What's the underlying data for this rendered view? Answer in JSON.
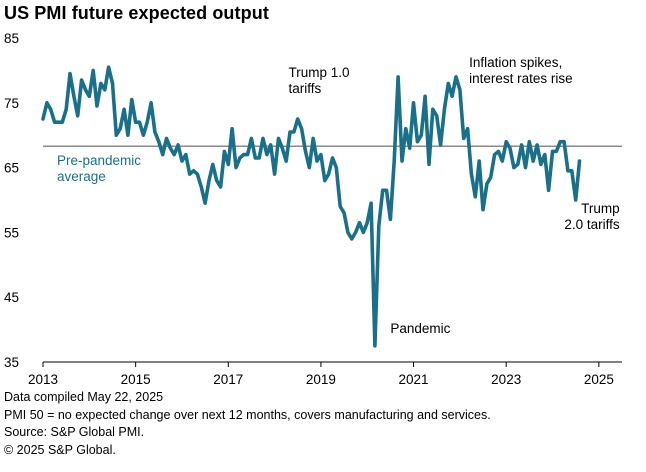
{
  "title": "US PMI future expected output",
  "colors": {
    "line": "#1a6f8a",
    "reference": "#8a8a8a",
    "reference_label": "#1a6f8a"
  },
  "footnotes": [
    "Data compiled May 22, 2025",
    "PMI 50 =  no expected change over next 12 months, covers manufacturing and services.",
    "Source: S&P Global PMI.",
    "© 2025 S&P Global."
  ],
  "chart_data": {
    "type": "line",
    "title": "US PMI future expected output",
    "xlabel": "",
    "ylabel": "",
    "xlim": [
      2013.0,
      2025.5
    ],
    "ylim": [
      35,
      85
    ],
    "yticks": [
      35,
      45,
      55,
      65,
      75,
      85
    ],
    "xticks": [
      {
        "value": 2013,
        "label": "2013"
      },
      {
        "value": 2015,
        "label": "2015"
      },
      {
        "value": 2017,
        "label": "2017"
      },
      {
        "value": 2019,
        "label": "2019"
      },
      {
        "value": 2021,
        "label": "2021"
      },
      {
        "value": 2023,
        "label": "2023"
      },
      {
        "value": 2025,
        "label": "2025"
      }
    ],
    "grid": false,
    "reference_line": {
      "y": 68.3,
      "label": [
        "Pre-pandemic",
        "average"
      ]
    },
    "annotations": [
      {
        "x": 2018.3,
        "y": 79.0,
        "lines": [
          "Trump 1.0",
          "tariffs"
        ]
      },
      {
        "x": 2022.2,
        "y": 80.5,
        "lines": [
          "Inflation spikes,",
          "interest rates rise"
        ]
      },
      {
        "x": 2020.5,
        "y": 39.5,
        "lines": [
          "Pandemic"
        ]
      },
      {
        "x": 2025.45,
        "y": 58.0,
        "lines": [
          "Trump",
          "2.0 tariffs"
        ]
      }
    ],
    "series": [
      {
        "x_start": 2013.0,
        "x_step": 0.08333,
        "values": [
          72.5,
          75,
          74,
          72,
          72,
          72,
          74,
          79.5,
          76,
          73,
          78.5,
          77,
          76,
          80,
          74.5,
          78,
          77,
          80.5,
          78,
          70,
          71,
          74,
          70,
          75.5,
          72,
          72,
          70,
          72,
          75,
          70.5,
          69,
          67,
          69.5,
          68,
          67,
          68.5,
          66,
          67,
          64,
          64.5,
          64,
          62,
          59.5,
          63,
          65.5,
          63,
          62,
          67.5,
          65.5,
          71,
          65,
          66.5,
          67,
          67,
          69.5,
          66.5,
          66.5,
          69.5,
          67,
          68.5,
          64,
          69.5,
          68,
          66,
          70.5,
          70.5,
          72.5,
          71,
          67.5,
          65,
          69.5,
          66,
          67,
          63,
          64,
          66.5,
          65,
          59,
          58,
          55,
          54,
          55,
          56.5,
          55,
          56.5,
          59.5,
          37.5,
          56,
          61.5,
          61.5,
          57,
          66,
          79,
          66,
          71,
          68,
          75,
          69,
          70,
          76,
          65.5,
          74,
          73,
          68.5,
          74,
          78,
          76,
          79,
          77,
          69.5,
          71,
          64,
          60.5,
          66,
          58.5,
          62.5,
          63.5,
          67,
          67.5,
          66,
          69,
          68,
          65,
          65.5,
          68.5,
          65,
          69,
          66,
          68.5,
          65.5,
          67,
          61.5,
          67.5,
          67.5,
          69,
          69,
          64.5,
          64.5,
          60,
          66
        ]
      }
    ]
  }
}
